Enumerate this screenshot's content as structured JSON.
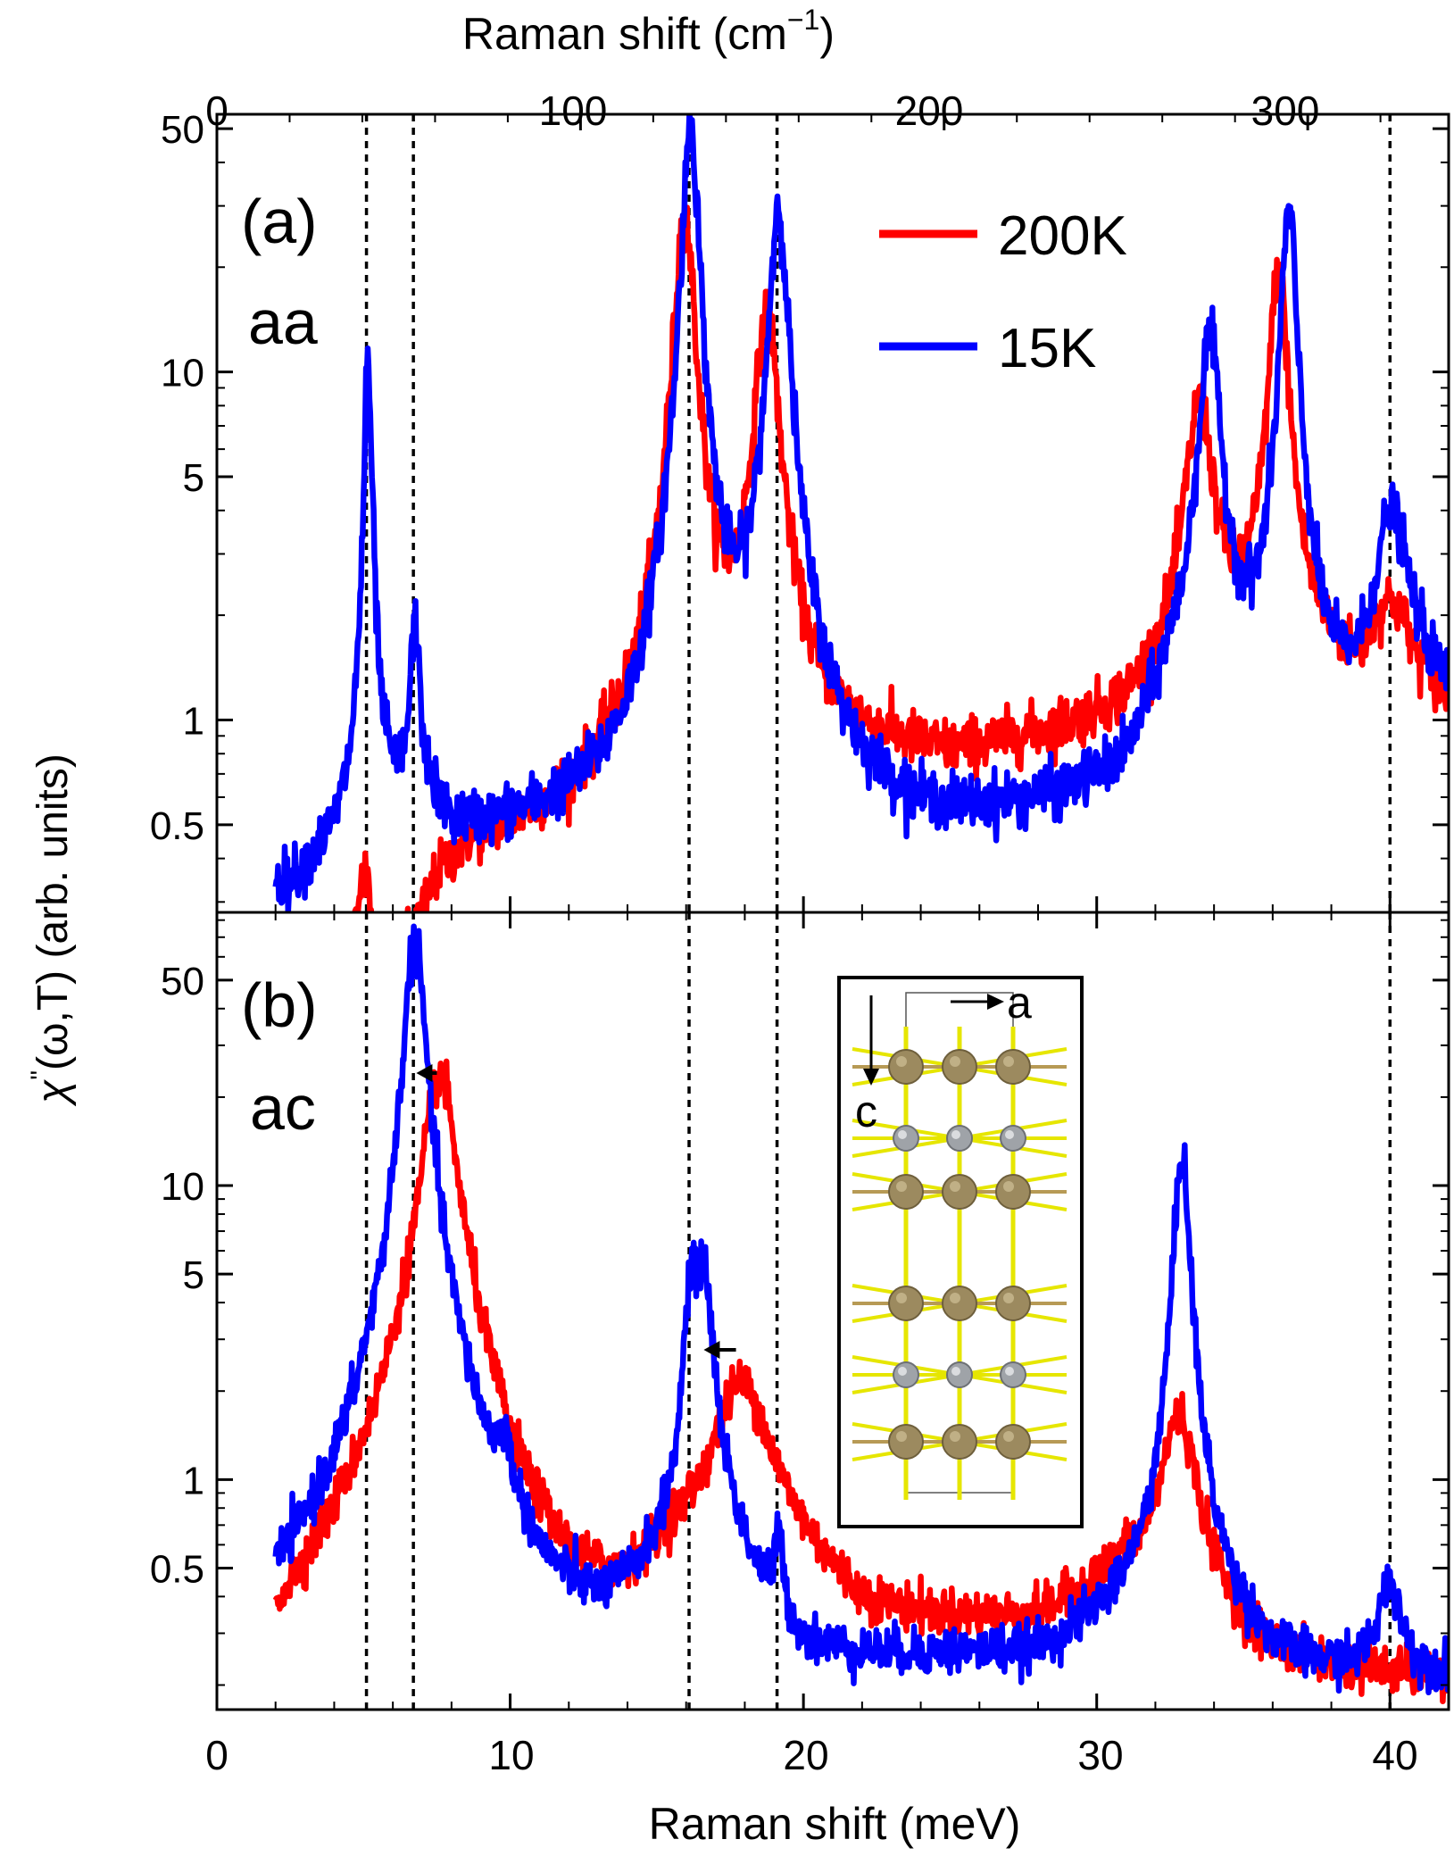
{
  "figure": {
    "top_axis_label": "Raman shift (cm",
    "top_axis_label_sup": "−1",
    "top_axis_label_end": ")",
    "bottom_axis_label": "Raman shift (meV)",
    "y_axis_label_chi": "χ",
    "y_axis_label_prime": "\"",
    "y_axis_label_rest": "(ω,T) (arb. units)",
    "top_ticks": [
      "0",
      "100",
      "200",
      "300"
    ],
    "bottom_ticks": [
      "0",
      "10",
      "20",
      "30",
      "40"
    ],
    "legend": [
      "200K",
      "15K"
    ],
    "inset_labels": {
      "a": "a",
      "c": "c"
    },
    "colors": {
      "200K": "#ff0000",
      "15K": "#0000ff",
      "guide": "#000000",
      "inset_large_atom": "#9c8a5f",
      "inset_small_atom": "#9fa3a8",
      "inset_bond": "#e6e600"
    }
  },
  "chart_data": [
    {
      "type": "line",
      "panel_label": "(a)",
      "polarization": "aa",
      "xlabel": "Raman shift (meV)",
      "x2label": "Raman shift (cm^-1)",
      "ylabel": "χ''(ω,T) (arb. units)",
      "yscale": "log",
      "xlim": [
        0,
        42
      ],
      "ylim": [
        0.28,
        55
      ],
      "yticks": [
        0.5,
        1,
        5,
        10,
        50
      ],
      "ytick_labels": [
        "0.5",
        "1",
        "5",
        "10",
        "50"
      ],
      "guide_lines_meV": [
        5.1,
        6.7,
        16.1,
        19.1,
        40.0
      ],
      "series": [
        {
          "name": "200K",
          "peaks": [
            {
              "x": 5.0,
              "h": 0.22,
              "w": 0.25
            },
            {
              "x": 15.95,
              "h": 28.0,
              "w": 0.32
            },
            {
              "x": 18.75,
              "h": 14.0,
              "w": 0.38
            },
            {
              "x": 33.5,
              "h": 7.0,
              "w": 0.45
            },
            {
              "x": 36.2,
              "h": 18.0,
              "w": 0.3
            },
            {
              "x": 40.0,
              "h": 1.1,
              "w": 0.8
            }
          ],
          "background": [
            [
              2,
              0.15
            ],
            [
              5.3,
              0.12
            ],
            [
              6.8,
              0.2
            ],
            [
              7.5,
              0.3
            ],
            [
              8.5,
              0.38
            ],
            [
              12,
              0.45
            ],
            [
              15,
              0.6
            ],
            [
              21,
              0.75
            ],
            [
              25,
              0.72
            ],
            [
              31,
              0.92
            ],
            [
              33,
              1.1
            ],
            [
              35,
              1.4
            ],
            [
              38,
              1.2
            ],
            [
              39,
              0.95
            ],
            [
              41,
              1.0
            ],
            [
              42,
              0.95
            ]
          ]
        },
        {
          "name": "15K",
          "peaks": [
            {
              "x": 5.15,
              "h": 10.0,
              "w": 0.12
            },
            {
              "x": 6.75,
              "h": 1.3,
              "w": 0.15
            },
            {
              "x": 16.15,
              "h": 52.0,
              "w": 0.25
            },
            {
              "x": 19.15,
              "h": 29.0,
              "w": 0.3
            },
            {
              "x": 33.85,
              "h": 11.5,
              "w": 0.35
            },
            {
              "x": 36.55,
              "h": 28.0,
              "w": 0.25
            },
            {
              "x": 40.05,
              "h": 3.0,
              "w": 0.6
            }
          ],
          "background": [
            [
              2.5,
              0.3
            ],
            [
              4,
              0.38
            ],
            [
              5,
              0.5
            ],
            [
              6.2,
              0.5
            ],
            [
              7,
              0.55
            ],
            [
              8,
              0.42
            ],
            [
              12,
              0.42
            ],
            [
              14,
              0.4
            ],
            [
              15,
              0.5
            ],
            [
              17.5,
              0.55
            ],
            [
              21,
              0.45
            ],
            [
              24,
              0.42
            ],
            [
              29,
              0.5
            ],
            [
              31,
              0.55
            ],
            [
              32.5,
              1.0
            ],
            [
              35,
              0.9
            ],
            [
              38,
              0.75
            ],
            [
              39.3,
              0.7
            ],
            [
              41,
              1.0
            ],
            [
              42,
              1.0
            ]
          ]
        }
      ]
    },
    {
      "type": "line",
      "panel_label": "(b)",
      "polarization": "ac",
      "xlabel": "Raman shift (meV)",
      "ylabel": "χ''(ω,T) (arb. units)",
      "yscale": "log",
      "xlim": [
        0,
        42
      ],
      "ylim": [
        0.165,
        85
      ],
      "yticks": [
        0.5,
        1,
        5,
        10,
        50
      ],
      "ytick_labels": [
        "0.5",
        "1",
        "5",
        "10",
        "50"
      ],
      "guide_lines_meV": [
        5.1,
        6.7,
        16.1,
        19.1,
        40.0
      ],
      "arrows_meV": [
        [
          7.5,
          6.8
        ],
        [
          17.7,
          16.6
        ]
      ],
      "series": [
        {
          "name": "200K",
          "peaks": [
            {
              "x": 7.6,
              "h": 23.0,
              "w": 0.55
            },
            {
              "x": 17.9,
              "h": 1.7,
              "w": 1.0
            },
            {
              "x": 32.8,
              "h": 1.3,
              "w": 0.6
            }
          ],
          "background": [
            [
              2,
              0.16
            ],
            [
              4,
              0.3
            ],
            [
              5.5,
              0.55
            ],
            [
              6.5,
              1.0
            ],
            [
              9,
              0.7
            ],
            [
              10.2,
              0.3
            ],
            [
              12,
              0.2
            ],
            [
              14,
              0.25
            ],
            [
              15.5,
              0.4
            ],
            [
              20,
              0.38
            ],
            [
              22,
              0.28
            ],
            [
              28,
              0.3
            ],
            [
              31,
              0.45
            ],
            [
              34,
              0.3
            ],
            [
              36,
              0.22
            ],
            [
              42,
              0.2
            ]
          ]
        },
        {
          "name": "15K",
          "peaks": [
            {
              "x": 5.05,
              "h": 0.15,
              "w": 0.12
            },
            {
              "x": 6.75,
              "h": 68.0,
              "w": 0.33
            },
            {
              "x": 9.8,
              "h": 0.45,
              "w": 0.2
            },
            {
              "x": 16.15,
              "h": 3.5,
              "w": 0.2
            },
            {
              "x": 16.6,
              "h": 4.5,
              "w": 0.3
            },
            {
              "x": 19.15,
              "h": 0.3,
              "w": 0.15
            },
            {
              "x": 32.9,
              "h": 12.5,
              "w": 0.25
            },
            {
              "x": 40.0,
              "h": 0.23,
              "w": 0.4
            }
          ],
          "background": [
            [
              2,
              0.2
            ],
            [
              4,
              0.3
            ],
            [
              5.5,
              0.45
            ],
            [
              6,
              0.5
            ],
            [
              7.5,
              0.6
            ],
            [
              9,
              0.3
            ],
            [
              10,
              0.3
            ],
            [
              11,
              0.18
            ],
            [
              13,
              0.19
            ],
            [
              15,
              0.35
            ],
            [
              17.5,
              0.45
            ],
            [
              19,
              0.25
            ],
            [
              20,
              0.2
            ],
            [
              25,
              0.22
            ],
            [
              28,
              0.22
            ],
            [
              31,
              0.3
            ],
            [
              33.5,
              0.27
            ],
            [
              36,
              0.2
            ],
            [
              40,
              0.2
            ],
            [
              42,
              0.2
            ]
          ]
        }
      ]
    }
  ]
}
